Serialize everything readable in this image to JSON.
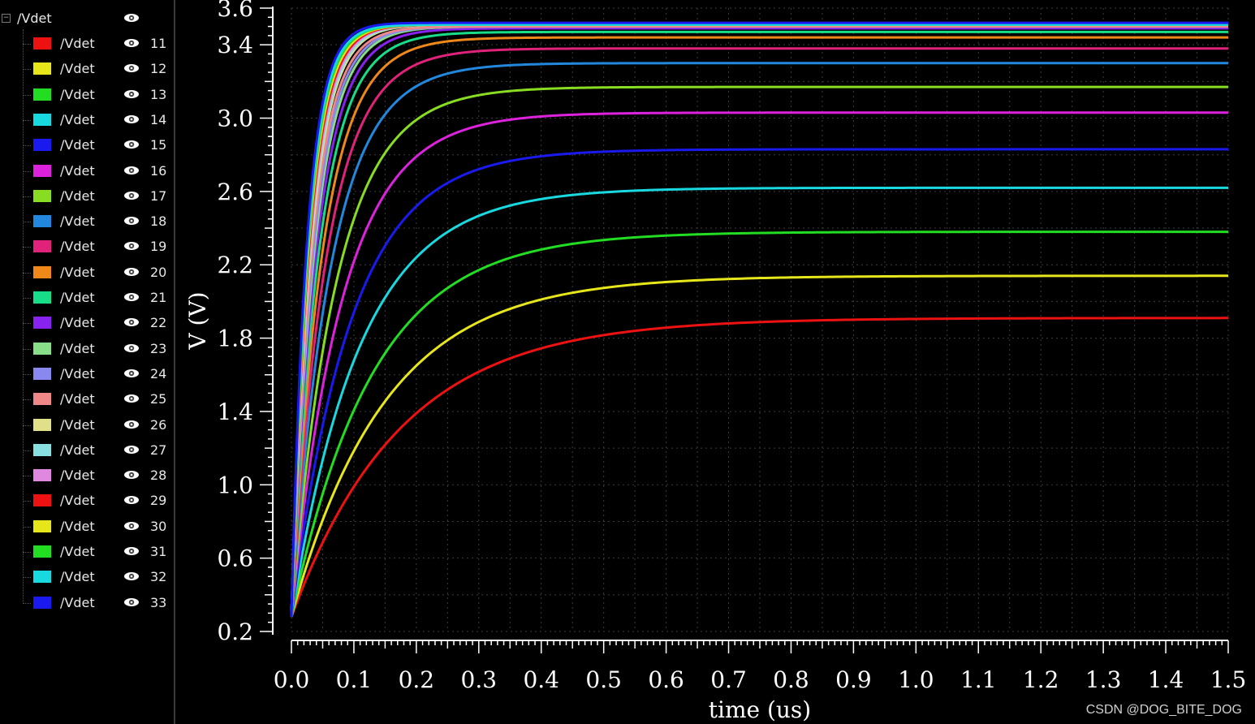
{
  "sidebar": {
    "root_label": "/Vdet",
    "signals": [
      {
        "name": "/Vdet",
        "num": "11",
        "color": "#ee1111"
      },
      {
        "name": "/Vdet",
        "num": "12",
        "color": "#e6e61a"
      },
      {
        "name": "/Vdet",
        "num": "13",
        "color": "#22dd22"
      },
      {
        "name": "/Vdet",
        "num": "14",
        "color": "#18d8e0"
      },
      {
        "name": "/Vdet",
        "num": "15",
        "color": "#1a1aee"
      },
      {
        "name": "/Vdet",
        "num": "16",
        "color": "#dd22dd"
      },
      {
        "name": "/Vdet",
        "num": "17",
        "color": "#88dd22"
      },
      {
        "name": "/Vdet",
        "num": "18",
        "color": "#2288dd"
      },
      {
        "name": "/Vdet",
        "num": "19",
        "color": "#e0227a"
      },
      {
        "name": "/Vdet",
        "num": "20",
        "color": "#ee8818"
      },
      {
        "name": "/Vdet",
        "num": "21",
        "color": "#18dd88"
      },
      {
        "name": "/Vdet",
        "num": "22",
        "color": "#8822ee"
      },
      {
        "name": "/Vdet",
        "num": "23",
        "color": "#88dd88"
      },
      {
        "name": "/Vdet",
        "num": "24",
        "color": "#8888ee"
      },
      {
        "name": "/Vdet",
        "num": "25",
        "color": "#ee8888"
      },
      {
        "name": "/Vdet",
        "num": "26",
        "color": "#e0e088"
      },
      {
        "name": "/Vdet",
        "num": "27",
        "color": "#88e0e0"
      },
      {
        "name": "/Vdet",
        "num": "28",
        "color": "#e088e0"
      },
      {
        "name": "/Vdet",
        "num": "29",
        "color": "#ee1111"
      },
      {
        "name": "/Vdet",
        "num": "30",
        "color": "#e6e61a"
      },
      {
        "name": "/Vdet",
        "num": "31",
        "color": "#22dd22"
      },
      {
        "name": "/Vdet",
        "num": "32",
        "color": "#18d8e0"
      },
      {
        "name": "/Vdet",
        "num": "33",
        "color": "#1a1aee"
      }
    ]
  },
  "chart_data": {
    "type": "line",
    "xlabel": "time (us)",
    "ylabel": "V (V)",
    "xlim": [
      0.0,
      1.5
    ],
    "ylim": [
      0.2,
      3.6
    ],
    "x_ticks": [
      "0.0",
      "0.1",
      "0.2",
      "0.3",
      "0.4",
      "0.5",
      "0.6",
      "0.7",
      "0.8",
      "0.9",
      "1.0",
      "1.1",
      "1.2",
      "1.3",
      "1.4",
      "1.5"
    ],
    "y_ticks": [
      "0.2",
      "0.6",
      "1.0",
      "1.4",
      "1.8",
      "2.2",
      "2.6",
      "3.0",
      "3.4",
      "3.6"
    ],
    "grid": true,
    "v_start": 0.28,
    "series": [
      {
        "name": "11",
        "final": 1.91,
        "tau": 0.175,
        "color": "#ee1111"
      },
      {
        "name": "12",
        "final": 2.14,
        "tau": 0.15,
        "color": "#e6e61a"
      },
      {
        "name": "13",
        "final": 2.38,
        "tau": 0.13,
        "color": "#22dd22"
      },
      {
        "name": "14",
        "final": 2.62,
        "tau": 0.11,
        "color": "#18d8e0"
      },
      {
        "name": "15",
        "final": 2.83,
        "tau": 0.095,
        "color": "#1a1aee"
      },
      {
        "name": "16",
        "final": 3.03,
        "tau": 0.082,
        "color": "#dd22dd"
      },
      {
        "name": "17",
        "final": 3.17,
        "tau": 0.072,
        "color": "#88dd22"
      },
      {
        "name": "18",
        "final": 3.3,
        "tau": 0.063,
        "color": "#2288dd"
      },
      {
        "name": "19",
        "final": 3.38,
        "tau": 0.056,
        "color": "#e0227a"
      },
      {
        "name": "20",
        "final": 3.44,
        "tau": 0.05,
        "color": "#ee8818"
      },
      {
        "name": "21",
        "final": 3.47,
        "tau": 0.045,
        "color": "#18dd88"
      },
      {
        "name": "22",
        "final": 3.49,
        "tau": 0.041,
        "color": "#8822ee"
      },
      {
        "name": "23",
        "final": 3.5,
        "tau": 0.038,
        "color": "#88dd88"
      },
      {
        "name": "24",
        "final": 3.5,
        "tau": 0.036,
        "color": "#8888ee"
      },
      {
        "name": "25",
        "final": 3.5,
        "tau": 0.034,
        "color": "#ee8888"
      },
      {
        "name": "26",
        "final": 3.51,
        "tau": 0.032,
        "color": "#e0e088"
      },
      {
        "name": "27",
        "final": 3.51,
        "tau": 0.031,
        "color": "#88e0e0"
      },
      {
        "name": "28",
        "final": 3.51,
        "tau": 0.03,
        "color": "#e088e0"
      },
      {
        "name": "29",
        "final": 3.51,
        "tau": 0.029,
        "color": "#ee1111"
      },
      {
        "name": "30",
        "final": 3.51,
        "tau": 0.028,
        "color": "#e6e61a"
      },
      {
        "name": "31",
        "final": 3.51,
        "tau": 0.027,
        "color": "#22dd22"
      },
      {
        "name": "32",
        "final": 3.51,
        "tau": 0.026,
        "color": "#18d8e0"
      },
      {
        "name": "33",
        "final": 3.52,
        "tau": 0.025,
        "color": "#1a1aee"
      }
    ]
  },
  "watermark": "CSDN @DOG_BITE_DOG"
}
